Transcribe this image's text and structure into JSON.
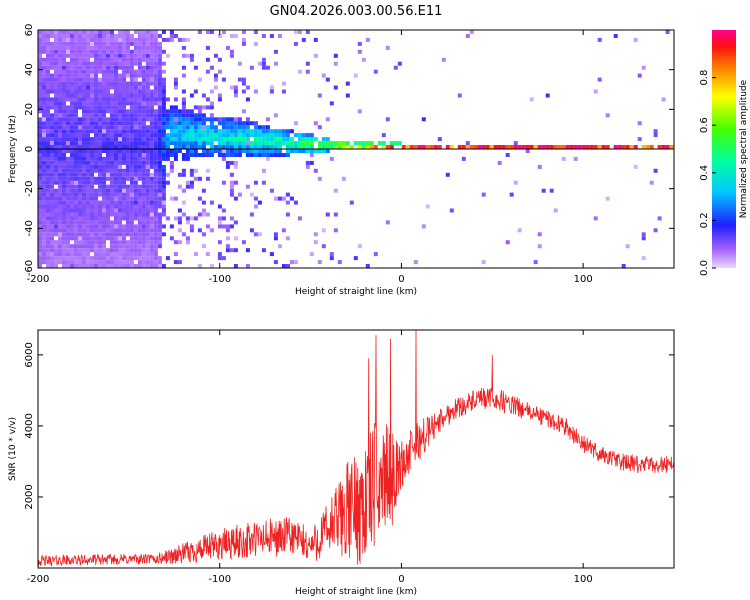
{
  "title": "GN04.2026.003.00.56.E11",
  "colors": {
    "snr_line": "#ee2222",
    "axis": "#000000"
  },
  "chart_data": [
    {
      "type": "heatmap",
      "title": "GN04.2026.003.00.56.E11",
      "xlabel": "Height of straight line (km)",
      "ylabel": "Frequency (Hz)",
      "xlim": [
        -200,
        150
      ],
      "ylim": [
        -60,
        60
      ],
      "x_ticks": [
        {
          "value": -200,
          "label": "-200"
        },
        {
          "value": -100,
          "label": "-100"
        },
        {
          "value": 0,
          "label": "0"
        },
        {
          "value": 100,
          "label": "100"
        }
      ],
      "y_ticks": [
        {
          "value": 60,
          "label": "60"
        },
        {
          "value": 40,
          "label": "40"
        },
        {
          "value": 20,
          "label": "20"
        },
        {
          "value": 0,
          "label": "0"
        },
        {
          "value": -20,
          "label": "-20"
        },
        {
          "value": -40,
          "label": "-40"
        },
        {
          "value": -60,
          "label": "-60"
        }
      ],
      "colorbar": {
        "label": "Normalized spectral amplitude",
        "range": [
          0,
          1
        ],
        "ticks": [
          {
            "value": 0.0,
            "label": "0.0"
          },
          {
            "value": 0.2,
            "label": "0.2"
          },
          {
            "value": 0.4,
            "label": "0.4"
          },
          {
            "value": 0.6,
            "label": "0.6"
          },
          {
            "value": 0.8,
            "label": "0.8"
          }
        ]
      },
      "reference_line_y": 0,
      "signal_profile": [
        {
          "x": -200,
          "center_hz": 0,
          "halfwidth_hz": 60,
          "peak_amp": 0.15,
          "coverage": 0.7
        },
        {
          "x": -135,
          "center_hz": 0,
          "halfwidth_hz": 60,
          "peak_amp": 0.15,
          "coverage": 0.7
        },
        {
          "x": -130,
          "center_hz": 7,
          "halfwidth_hz": 14,
          "peak_amp": 0.35,
          "coverage": 0.25
        },
        {
          "x": -100,
          "center_hz": 5,
          "halfwidth_hz": 10,
          "peak_amp": 0.42,
          "coverage": 0.15
        },
        {
          "x": -60,
          "center_hz": 2,
          "halfwidth_hz": 6,
          "peak_amp": 0.5,
          "coverage": 0.08
        },
        {
          "x": -40,
          "center_hz": 1,
          "halfwidth_hz": 3,
          "peak_amp": 0.7,
          "coverage": 0.05
        },
        {
          "x": -20,
          "center_hz": 0.5,
          "halfwidth_hz": 2,
          "peak_amp": 0.9,
          "coverage": 0.02
        },
        {
          "x": 0,
          "center_hz": 0,
          "halfwidth_hz": 2,
          "peak_amp": 1.0,
          "coverage": 0.02
        },
        {
          "x": 150,
          "center_hz": 0,
          "halfwidth_hz": 1.5,
          "peak_amp": 1.0,
          "coverage": 0.02
        }
      ]
    },
    {
      "type": "line",
      "title": "",
      "xlabel": "Height of straight line (km)",
      "ylabel": "SNR (10 * v/v)",
      "xlim": [
        -200,
        150
      ],
      "ylim": [
        0,
        6700
      ],
      "x_ticks": [
        {
          "value": -200,
          "label": "-200"
        },
        {
          "value": -100,
          "label": "-100"
        },
        {
          "value": 0,
          "label": "0"
        },
        {
          "value": 100,
          "label": "100"
        }
      ],
      "y_ticks": [
        {
          "value": 2000,
          "label": "2000"
        },
        {
          "value": 4000,
          "label": "4000"
        },
        {
          "value": 6000,
          "label": "6000"
        }
      ],
      "series": [
        {
          "name": "SNR",
          "envelope": {
            "x": [
              -200,
              -150,
              -135,
              -120,
              -100,
              -80,
              -60,
              -50,
              -40,
              -30,
              -20,
              -15,
              -10,
              -5,
              0,
              10,
              20,
              30,
              40,
              50,
              60,
              70,
              80,
              90,
              100,
              110,
              120,
              130,
              140,
              150
            ],
            "mean": [
              200,
              250,
              250,
              400,
              650,
              800,
              900,
              600,
              1100,
              1600,
              1800,
              2300,
              2600,
              2500,
              2900,
              3600,
              4100,
              4500,
              4700,
              4800,
              4600,
              4400,
              4200,
              4000,
              3500,
              3200,
              3000,
              2900,
              2900,
              2950
            ],
            "noise": [
              150,
              150,
              150,
              300,
              450,
              550,
              550,
              500,
              800,
              1400,
              1800,
              1800,
              1600,
              1300,
              700,
              600,
              350,
              300,
              300,
              350,
              300,
              250,
              250,
              250,
              250,
              250,
              250,
              250,
              250,
              250
            ]
          },
          "spikes": [
            {
              "x": -18,
              "y": 5900
            },
            {
              "x": -14,
              "y": 6550
            },
            {
              "x": -6,
              "y": 6450
            },
            {
              "x": 8,
              "y": 6700
            },
            {
              "x": 50,
              "y": 6000
            }
          ]
        }
      ]
    }
  ]
}
